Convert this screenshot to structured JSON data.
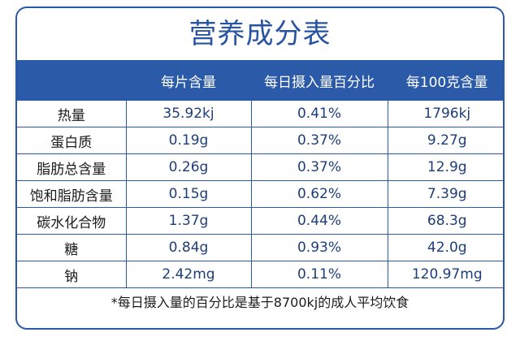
{
  "title": "营养成分表",
  "header": {
    "item": "",
    "per_slice": "每片含量",
    "daily_percent": "每日摄入量百分比",
    "per_100g": "每100克含量"
  },
  "rows": [
    {
      "name": "热量",
      "per_slice": "35.92kj",
      "daily_percent": "0.41%",
      "per_100g": "1796kj"
    },
    {
      "name": "蛋白质",
      "per_slice": "0.19g",
      "daily_percent": "0.37%",
      "per_100g": "9.27g"
    },
    {
      "name": "脂肪总含量",
      "per_slice": "0.26g",
      "daily_percent": "0.37%",
      "per_100g": "12.9g"
    },
    {
      "name": "饱和脂肪含量",
      "per_slice": "0.15g",
      "daily_percent": "0.62%",
      "per_100g": "7.39g"
    },
    {
      "name": "碳水化合物",
      "per_slice": "1.37g",
      "daily_percent": "0.44%",
      "per_100g": "68.3g"
    },
    {
      "name": "糖",
      "per_slice": "0.84g",
      "daily_percent": "0.93%",
      "per_100g": "42.0g"
    },
    {
      "name": "钠",
      "per_slice": "2.42mg",
      "daily_percent": "0.11%",
      "per_100g": "120.97mg"
    }
  ],
  "footnote": "*每日摄入量的百分比是基于8700kj的成人平均饮食",
  "colors": {
    "accent": "#2b5aa8",
    "title": "#2653a3",
    "header_text": "#ffffff"
  }
}
